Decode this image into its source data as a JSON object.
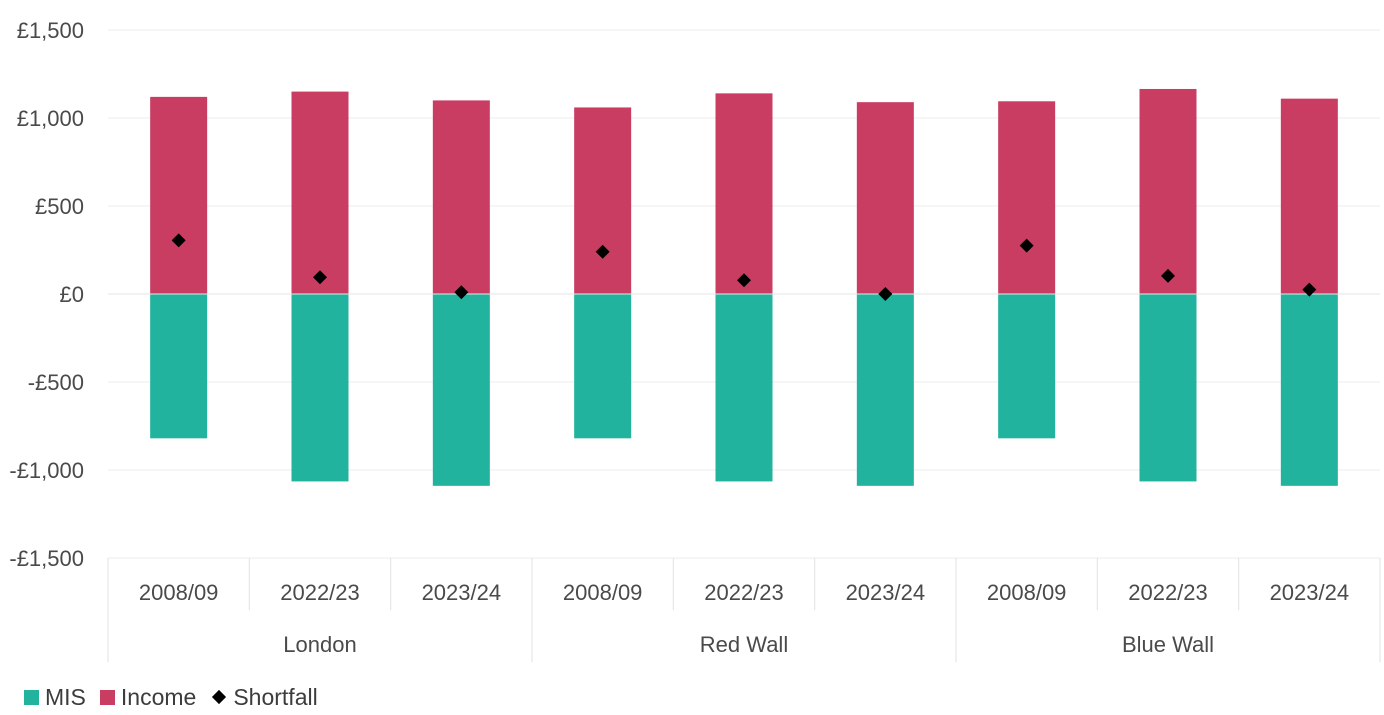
{
  "chart_data": {
    "type": "bar",
    "stacked": true,
    "categories": [
      "2008/09",
      "2022/23",
      "2023/24",
      "2008/09",
      "2022/23",
      "2023/24",
      "2008/09",
      "2022/23",
      "2023/24"
    ],
    "groups": [
      {
        "label": "London",
        "categories": [
          "2008/09",
          "2022/23",
          "2023/24"
        ]
      },
      {
        "label": "Red Wall",
        "categories": [
          "2008/09",
          "2022/23",
          "2023/24"
        ]
      },
      {
        "label": "Blue Wall",
        "categories": [
          "2008/09",
          "2022/23",
          "2023/24"
        ]
      }
    ],
    "series": [
      {
        "name": "MIS",
        "type": "bar",
        "color": "#22b39e",
        "values": [
          -820,
          -1065,
          -1090,
          -820,
          -1065,
          -1090,
          -820,
          -1065,
          -1090
        ]
      },
      {
        "name": "Income",
        "type": "bar",
        "color": "#c93d62",
        "values": [
          1120,
          1150,
          1100,
          1060,
          1140,
          1090,
          1095,
          1165,
          1110
        ]
      },
      {
        "name": "Shortfall",
        "type": "marker",
        "marker": "diamond",
        "color": "#000000",
        "values": [
          305,
          95,
          10,
          240,
          78,
          0,
          275,
          103,
          25
        ]
      }
    ],
    "ylim": [
      -1500,
      1500
    ],
    "yticks": [
      1500,
      1000,
      500,
      0,
      -500,
      -1000,
      -1500
    ],
    "ytick_labels": [
      "£1,500",
      "£1,000",
      "£500",
      "£0",
      "-£500",
      "-£1,000",
      "-£1,500"
    ],
    "grid": true,
    "legend_position": "bottom-left",
    "title": "",
    "xlabel": "",
    "ylabel": ""
  }
}
